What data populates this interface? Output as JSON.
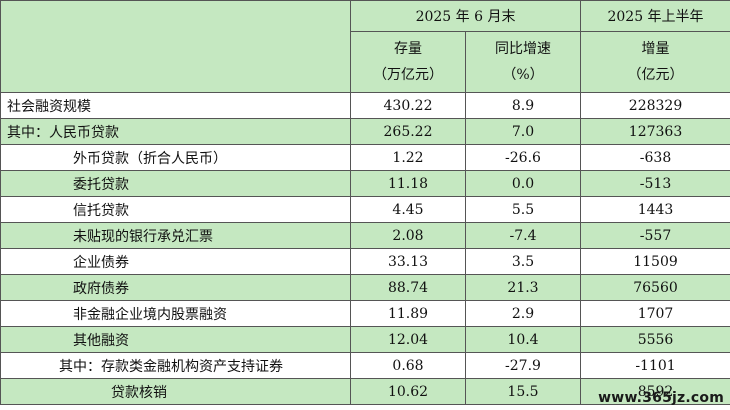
{
  "header": {
    "col_group_1": "2025 年 6 月末",
    "col_group_2": "2025 年上半年",
    "col_stock_line1": "存量",
    "col_stock_line2": "（万亿元）",
    "col_growth_line1": "同比增速",
    "col_growth_line2": "（%）",
    "col_increase_line1": "增量",
    "col_increase_line2": "（亿元）"
  },
  "rows": [
    {
      "label": "社会融资规模",
      "stock": "430.22",
      "growth": "8.9",
      "increase": "228329"
    },
    {
      "label": "其中：人民币贷款",
      "stock": "265.22",
      "growth": "7.0",
      "increase": "127363"
    },
    {
      "label": "外币贷款（折合人民币）",
      "stock": "1.22",
      "growth": "-26.6",
      "increase": "-638"
    },
    {
      "label": "委托贷款",
      "stock": "11.18",
      "growth": "0.0",
      "increase": "-513"
    },
    {
      "label": "信托贷款",
      "stock": "4.45",
      "growth": "5.5",
      "increase": "1443"
    },
    {
      "label": "未贴现的银行承兑汇票",
      "stock": "2.08",
      "growth": "-7.4",
      "increase": "-557"
    },
    {
      "label": "企业债券",
      "stock": "33.13",
      "growth": "3.5",
      "increase": "11509"
    },
    {
      "label": "政府债券",
      "stock": "88.74",
      "growth": "21.3",
      "increase": "76560"
    },
    {
      "label": "非金融企业境内股票融资",
      "stock": "11.89",
      "growth": "2.9",
      "increase": "1707"
    },
    {
      "label": "其他融资",
      "stock": "12.04",
      "growth": "10.4",
      "increase": "5556"
    },
    {
      "label": "其中：存款类金融机构资产支持证券",
      "stock": "0.68",
      "growth": "-27.9",
      "increase": "-1101"
    },
    {
      "label": "贷款核销",
      "stock": "10.62",
      "growth": "15.5",
      "increase": "8592"
    }
  ],
  "watermark": "www.365jz.com"
}
